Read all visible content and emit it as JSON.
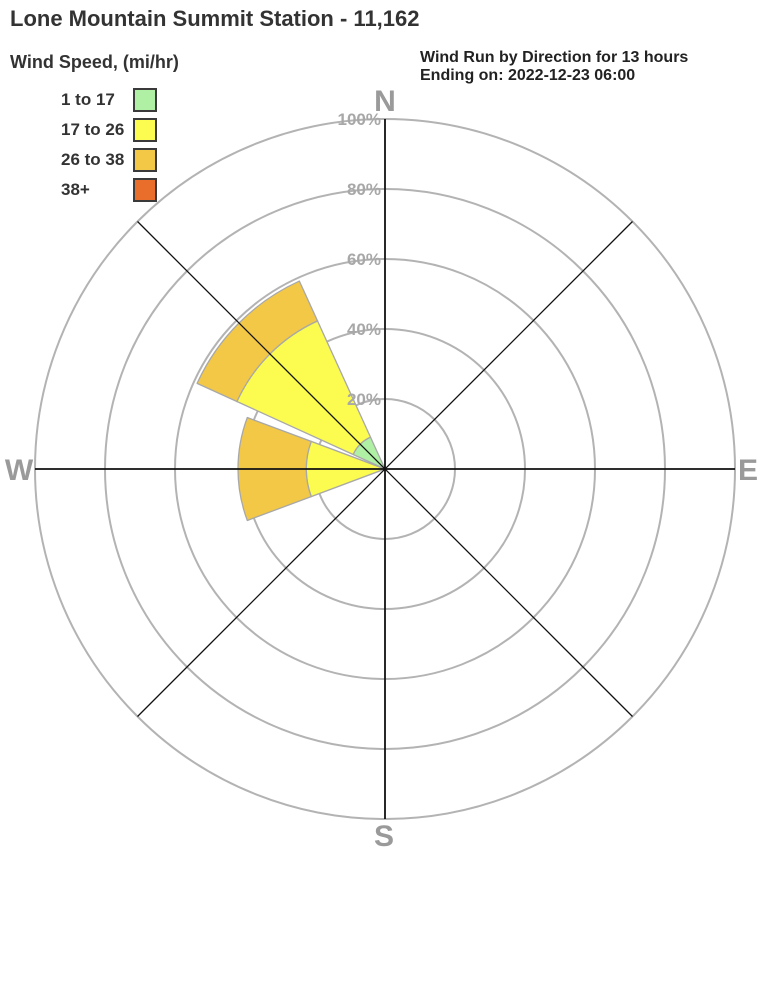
{
  "page": {
    "title": "Lone Mountain Summit Station - 11,162"
  },
  "header": {
    "line1": "Wind Run by Direction for 13 hours",
    "line2": "Ending on: 2022-12-23 06:00"
  },
  "legend": {
    "title": "Wind Speed, (mi/hr)"
  },
  "chart_data": {
    "type": "wind_rose",
    "title": "Lone Mountain Summit Station - 11,162",
    "subtitle": "Wind Run by Direction for 13 hours Ending on: 2022-12-23 06:00",
    "units": "percent of wind run",
    "compass_labels": {
      "north": "N",
      "east": "E",
      "south": "S",
      "west": "W"
    },
    "ring_percents": [
      20,
      40,
      60,
      80,
      100
    ],
    "radial_max_pct": 100,
    "petal_width_deg": 41,
    "speed_bins": [
      {
        "label": "1 to 17",
        "color": "#b0f0a5"
      },
      {
        "label": "17 to 26",
        "color": "#fbfb50"
      },
      {
        "label": "26 to 38",
        "color": "#f2c846"
      },
      {
        "label": "38+",
        "color": "#ea6e2b"
      }
    ],
    "petals": [
      {
        "direction": "NW",
        "center_deg": 315,
        "segments": [
          {
            "bin": "1 to 17",
            "from_pct": 0,
            "to_pct": 10
          },
          {
            "bin": "17 to 26",
            "from_pct": 10,
            "to_pct": 46.5
          },
          {
            "bin": "26 to 38",
            "from_pct": 46.5,
            "to_pct": 59
          }
        ]
      },
      {
        "direction": "W",
        "center_deg": 270,
        "segments": [
          {
            "bin": "17 to 26",
            "from_pct": 0,
            "to_pct": 22.5
          },
          {
            "bin": "26 to 38",
            "from_pct": 22.5,
            "to_pct": 42
          }
        ]
      }
    ],
    "colors": {
      "ring": "#b3b3b3",
      "axis": "#111111",
      "petal_outline": "#a8a8a8",
      "compass_text": "#9a9a9a",
      "ring_text": "#a8a8a8"
    }
  }
}
